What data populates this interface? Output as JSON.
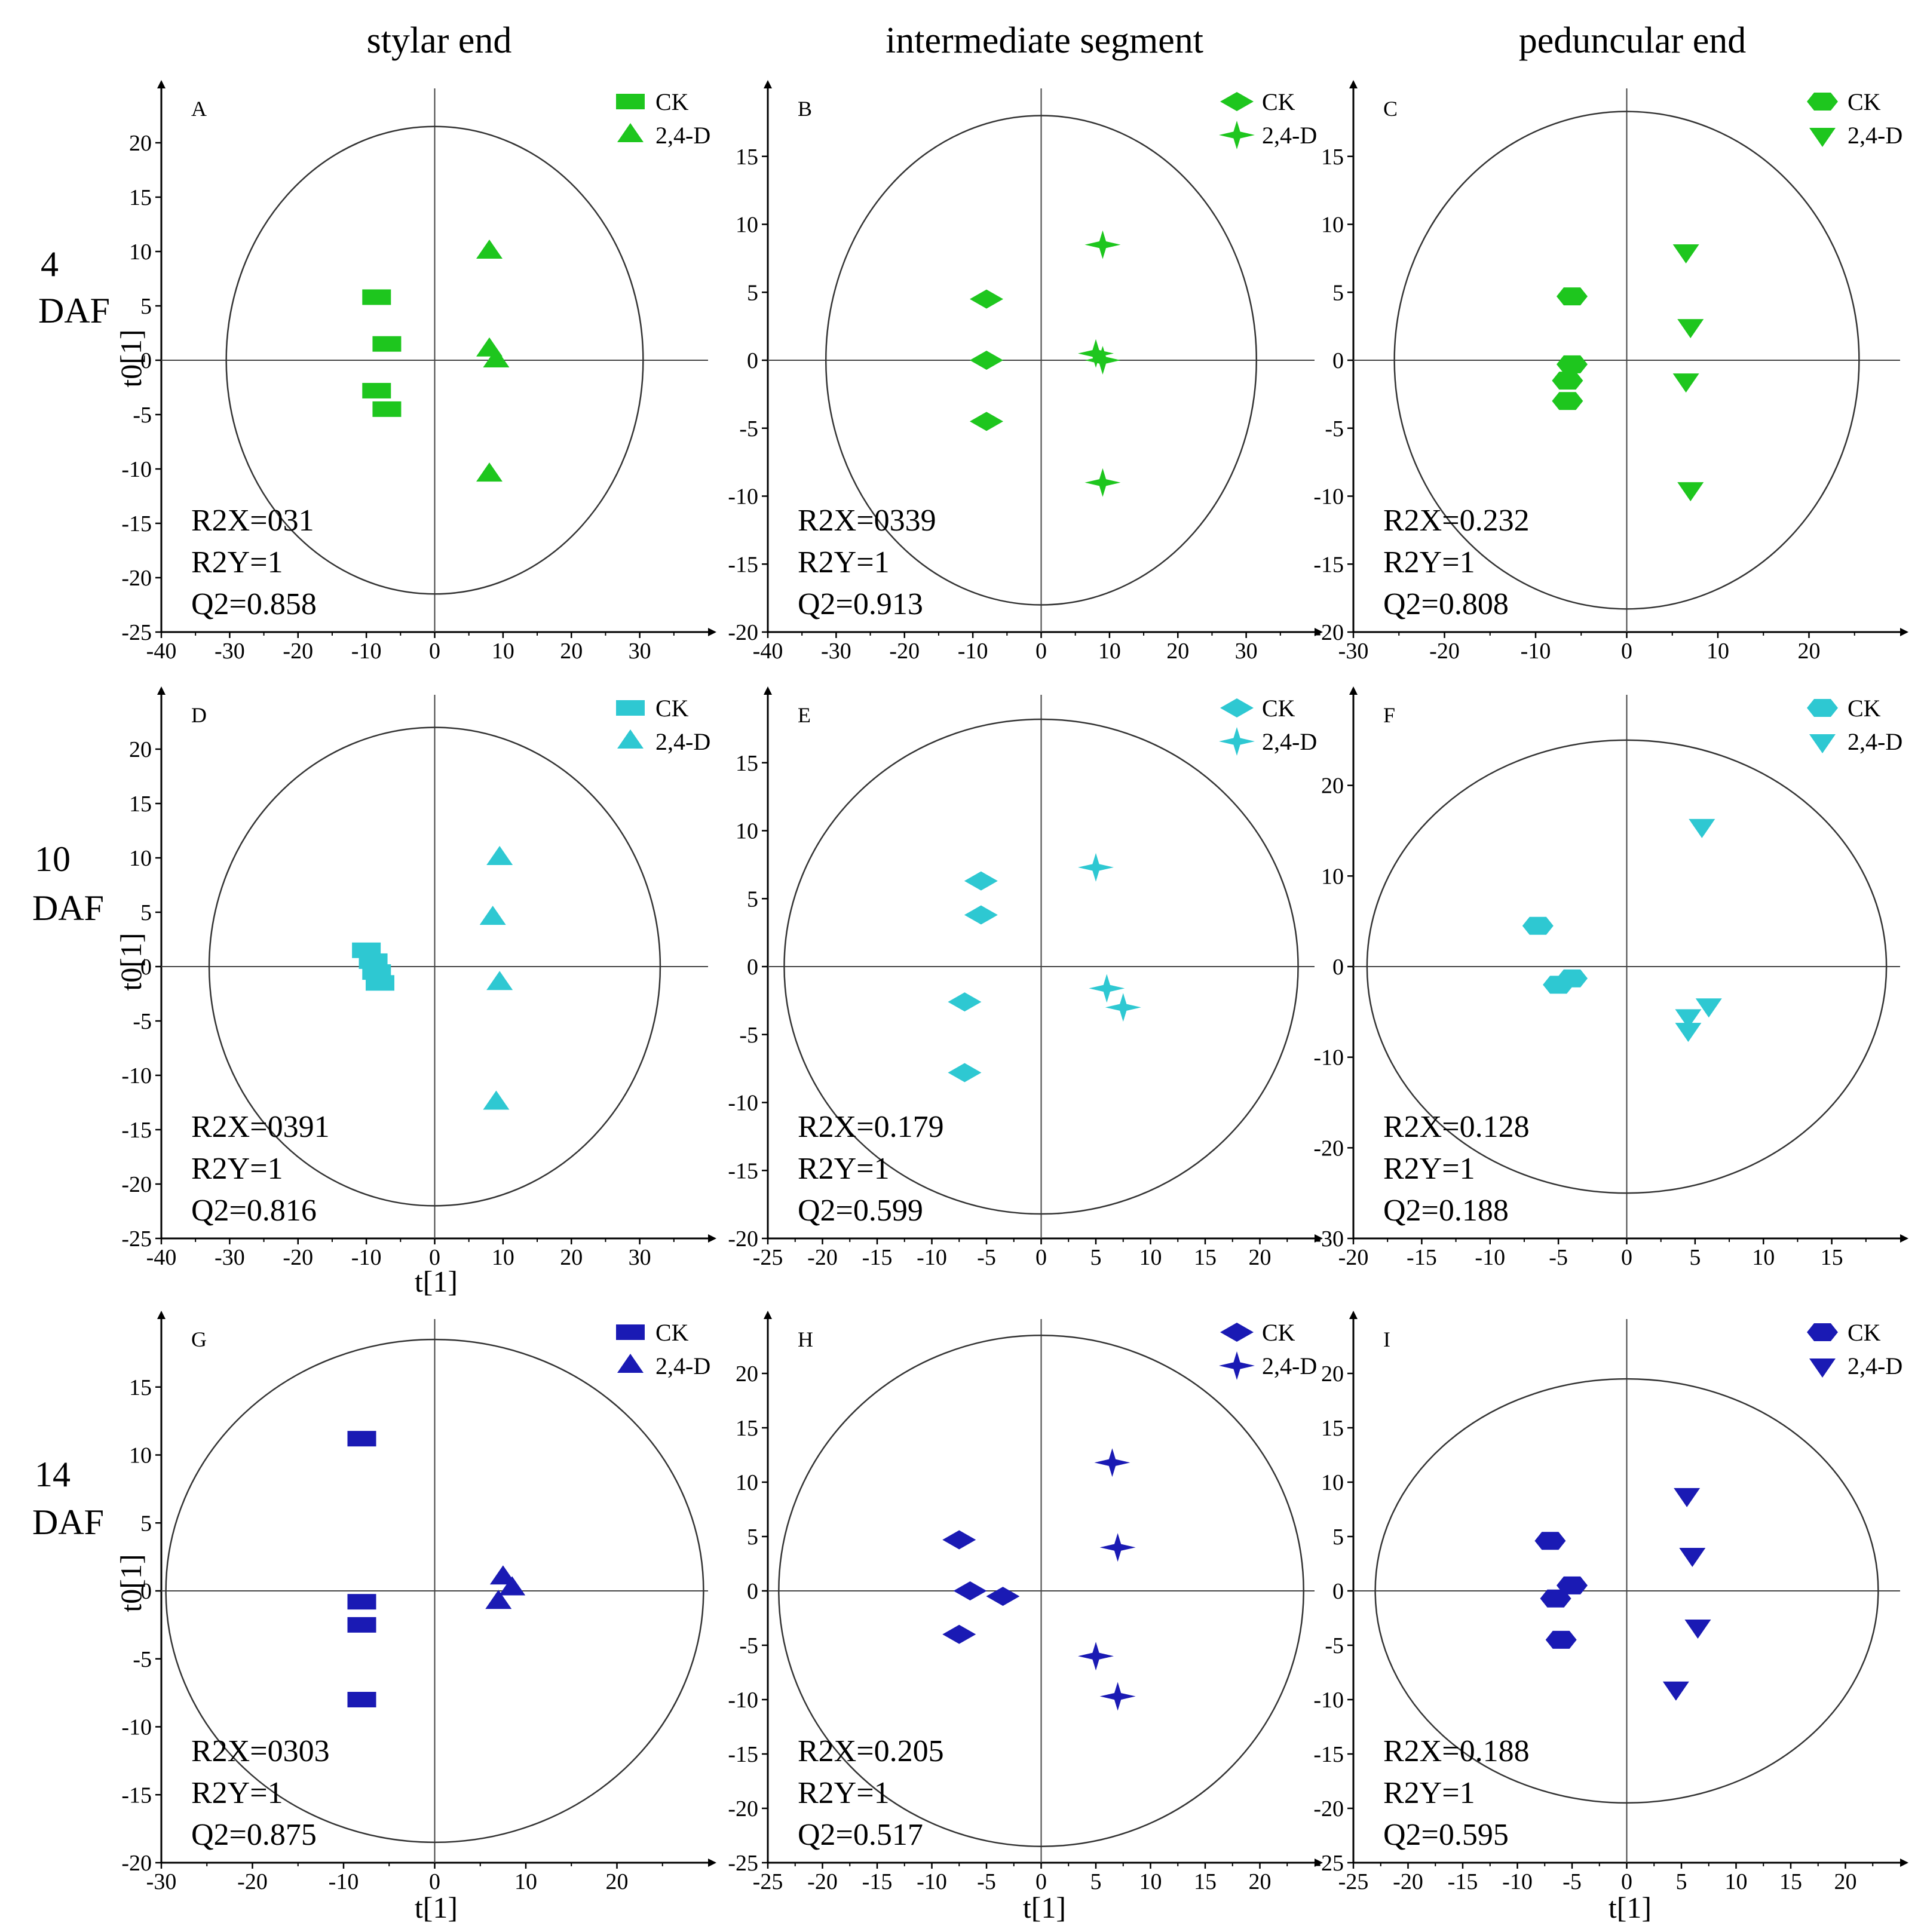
{
  "figure": {
    "column_titles": [
      "stylar end",
      "intermediate segment",
      "peduncular end"
    ],
    "row_labels": [
      {
        "num": "4",
        "unit": "DAF"
      },
      {
        "num": "10",
        "unit": "DAF"
      },
      {
        "num": "14",
        "unit": "DAF"
      }
    ],
    "x_axis_label": "t[1]",
    "y_axis_label": "t0[1]",
    "legend": {
      "control": "CK",
      "treatment": "2,4-D"
    },
    "colors": {
      "row0": "#1ec61e",
      "row1": "#2ec8d2",
      "row2": "#1a1ab4",
      "ellipse": "#333333",
      "axis": "#000000"
    }
  },
  "chart_data": [
    {
      "panel": "A",
      "type": "scatter",
      "title": "stylar end",
      "row": "4 DAF",
      "xlim": [
        -40,
        40
      ],
      "ylim": [
        -25,
        25
      ],
      "xticks": [
        -40,
        -30,
        -20,
        -10,
        0,
        10,
        20,
        30
      ],
      "yticks": [
        -25,
        -20,
        -15,
        -10,
        -5,
        0,
        5,
        10,
        15,
        20
      ],
      "ellipse": {
        "rx": 30.5,
        "ry": 21.5
      },
      "marker_ck": "rect",
      "marker_trt": "triangle-up",
      "series": [
        {
          "name": "CK",
          "points": [
            [
              -8.5,
              5.8
            ],
            [
              -7,
              1.5
            ],
            [
              -8.5,
              -2.8
            ],
            [
              -7,
              -4.5
            ]
          ]
        },
        {
          "name": "2,4-D",
          "points": [
            [
              8,
              10
            ],
            [
              8,
              1
            ],
            [
              9,
              0
            ],
            [
              8,
              -10.5
            ]
          ]
        }
      ],
      "stats": {
        "r2x": "R2X=031",
        "r2y": "R2Y=1",
        "q2": "Q2=0.858"
      }
    },
    {
      "panel": "B",
      "type": "scatter",
      "title": "intermediate segment",
      "row": "4 DAF",
      "xlim": [
        -40,
        40
      ],
      "ylim": [
        -20,
        20
      ],
      "xticks": [
        -40,
        -30,
        -20,
        -10,
        0,
        10,
        20,
        30
      ],
      "yticks": [
        -20,
        -15,
        -10,
        -5,
        0,
        5,
        10,
        15
      ],
      "ellipse": {
        "rx": 31.5,
        "ry": 18
      },
      "marker_ck": "diamond",
      "marker_trt": "star4",
      "series": [
        {
          "name": "CK",
          "points": [
            [
              -8,
              4.5
            ],
            [
              -8,
              0
            ],
            [
              -8,
              -4.5
            ]
          ]
        },
        {
          "name": "2,4-D",
          "points": [
            [
              9,
              8.5
            ],
            [
              8,
              0.5
            ],
            [
              9,
              0
            ],
            [
              9,
              -9
            ]
          ]
        }
      ],
      "stats": {
        "r2x": "R2X=0339",
        "r2y": "R2Y=1",
        "q2": "Q2=0.913"
      }
    },
    {
      "panel": "C",
      "type": "scatter",
      "title": "peduncular end",
      "row": "4 DAF",
      "xlim": [
        -30,
        30
      ],
      "ylim": [
        -20,
        20
      ],
      "xticks": [
        -30,
        -20,
        -10,
        0,
        10,
        20
      ],
      "yticks": [
        -20,
        -15,
        -10,
        -5,
        0,
        5,
        10,
        15
      ],
      "ellipse": {
        "rx": 25.5,
        "ry": 18.3
      },
      "marker_ck": "hexagon",
      "marker_trt": "triangle-down",
      "series": [
        {
          "name": "CK",
          "points": [
            [
              -6,
              4.7
            ],
            [
              -6,
              -0.3
            ],
            [
              -6.5,
              -1.5
            ],
            [
              -6.5,
              -3
            ]
          ]
        },
        {
          "name": "2,4-D",
          "points": [
            [
              6.5,
              8
            ],
            [
              7,
              2.5
            ],
            [
              6.5,
              -1.5
            ],
            [
              7,
              -9.5
            ]
          ]
        }
      ],
      "stats": {
        "r2x": "R2X=0.232",
        "r2y": "R2Y=1",
        "q2": "Q2=0.808"
      }
    },
    {
      "panel": "D",
      "type": "scatter",
      "title": "stylar end",
      "row": "10 DAF",
      "xlim": [
        -40,
        40
      ],
      "ylim": [
        -25,
        25
      ],
      "xticks": [
        -40,
        -30,
        -20,
        -10,
        0,
        10,
        20,
        30
      ],
      "yticks": [
        -25,
        -20,
        -15,
        -10,
        -5,
        0,
        5,
        10,
        15,
        20
      ],
      "ellipse": {
        "rx": 33,
        "ry": 22
      },
      "marker_ck": "rect",
      "marker_trt": "triangle-up",
      "series": [
        {
          "name": "CK",
          "points": [
            [
              -10,
              1.5
            ],
            [
              -9,
              0.5
            ],
            [
              -8.5,
              -0.5
            ],
            [
              -8,
              -1.5
            ]
          ]
        },
        {
          "name": "2,4-D",
          "points": [
            [
              9.5,
              10
            ],
            [
              8.5,
              4.5
            ],
            [
              9.5,
              -1.5
            ],
            [
              9,
              -12.5
            ]
          ]
        }
      ],
      "stats": {
        "r2x": "R2X=0391",
        "r2y": "R2Y=1",
        "q2": "Q2=0.816"
      }
    },
    {
      "panel": "E",
      "type": "scatter",
      "title": "intermediate segment",
      "row": "10 DAF",
      "xlim": [
        -25,
        25
      ],
      "ylim": [
        -20,
        20
      ],
      "xticks": [
        -25,
        -20,
        -15,
        -10,
        -5,
        0,
        5,
        10,
        15,
        20
      ],
      "yticks": [
        -20,
        -15,
        -10,
        -5,
        0,
        5,
        10,
        15
      ],
      "ellipse": {
        "rx": 23.5,
        "ry": 18.2
      },
      "marker_ck": "diamond",
      "marker_trt": "star4",
      "series": [
        {
          "name": "CK",
          "points": [
            [
              -5.5,
              6.3
            ],
            [
              -5.5,
              3.8
            ],
            [
              -7,
              -2.6
            ],
            [
              -7,
              -7.8
            ]
          ]
        },
        {
          "name": "2,4-D",
          "points": [
            [
              5,
              7.3
            ],
            [
              6,
              -1.6
            ],
            [
              7.5,
              -3
            ]
          ]
        }
      ],
      "stats": {
        "r2x": "R2X=0.179",
        "r2y": "R2Y=1",
        "q2": "Q2=0.599"
      }
    },
    {
      "panel": "F",
      "type": "scatter",
      "title": "peduncular end",
      "row": "10 DAF",
      "xlim": [
        -20,
        20
      ],
      "ylim": [
        -30,
        30
      ],
      "xticks": [
        -20,
        -15,
        -10,
        -5,
        0,
        5,
        10,
        15
      ],
      "yticks": [
        -30,
        -20,
        -10,
        0,
        10,
        20
      ],
      "ellipse": {
        "rx": 19,
        "ry": 25
      },
      "marker_ck": "hexagon",
      "marker_trt": "triangle-down",
      "series": [
        {
          "name": "CK",
          "points": [
            [
              -6.5,
              4.5
            ],
            [
              -4,
              -1.3
            ],
            [
              -5,
              -2
            ]
          ]
        },
        {
          "name": "2,4-D",
          "points": [
            [
              5.5,
              15.5
            ],
            [
              6,
              -4.3
            ],
            [
              4.5,
              -5.5
            ],
            [
              4.5,
              -7
            ]
          ]
        }
      ],
      "stats": {
        "r2x": "R2X=0.128",
        "r2y": "R2Y=1",
        "q2": "Q2=0.188"
      }
    },
    {
      "panel": "G",
      "type": "scatter",
      "title": "stylar end",
      "row": "14 DAF",
      "xlim": [
        -30,
        30
      ],
      "ylim": [
        -20,
        20
      ],
      "xticks": [
        -30,
        -20,
        -10,
        0,
        10,
        20
      ],
      "yticks": [
        -20,
        -15,
        -10,
        -5,
        0,
        5,
        10,
        15
      ],
      "ellipse": {
        "rx": 29.5,
        "ry": 18.5
      },
      "marker_ck": "rect",
      "marker_trt": "triangle-up",
      "series": [
        {
          "name": "CK",
          "points": [
            [
              -8,
              11.2
            ],
            [
              -8,
              -0.8
            ],
            [
              -8,
              -2.5
            ],
            [
              -8,
              -8
            ]
          ]
        },
        {
          "name": "2,4-D",
          "points": [
            [
              7.5,
              1
            ],
            [
              8.5,
              0.2
            ],
            [
              7,
              -0.8
            ]
          ]
        }
      ],
      "stats": {
        "r2x": "R2X=0303",
        "r2y": "R2Y=1",
        "q2": "Q2=0.875"
      }
    },
    {
      "panel": "H",
      "type": "scatter",
      "title": "intermediate segment",
      "row": "14 DAF",
      "xlim": [
        -25,
        25
      ],
      "ylim": [
        -25,
        25
      ],
      "xticks": [
        -25,
        -20,
        -15,
        -10,
        -5,
        0,
        5,
        10,
        15,
        20
      ],
      "yticks": [
        -25,
        -20,
        -15,
        -10,
        -5,
        0,
        5,
        10,
        15,
        20
      ],
      "ellipse": {
        "rx": 24,
        "ry": 23.5
      },
      "marker_ck": "diamond",
      "marker_trt": "star4",
      "series": [
        {
          "name": "CK",
          "points": [
            [
              -7.5,
              4.7
            ],
            [
              -6.5,
              0
            ],
            [
              -3.5,
              -0.5
            ],
            [
              -7.5,
              -4
            ]
          ]
        },
        {
          "name": "2,4-D",
          "points": [
            [
              6.5,
              11.8
            ],
            [
              7,
              4
            ],
            [
              5,
              -6
            ],
            [
              7,
              -9.7
            ]
          ]
        }
      ],
      "stats": {
        "r2x": "R2X=0.205",
        "r2y": "R2Y=1",
        "q2": "Q2=0.517"
      }
    },
    {
      "panel": "I",
      "type": "scatter",
      "title": "peduncular end",
      "row": "14 DAF",
      "xlim": [
        -25,
        25
      ],
      "ylim": [
        -25,
        25
      ],
      "xticks": [
        -25,
        -20,
        -15,
        -10,
        -5,
        0,
        5,
        10,
        15,
        20
      ],
      "yticks": [
        -25,
        -20,
        -15,
        -10,
        -5,
        0,
        5,
        10,
        15,
        20
      ],
      "ellipse": {
        "rx": 23,
        "ry": 19.5
      },
      "marker_ck": "hexagon",
      "marker_trt": "triangle-down",
      "series": [
        {
          "name": "CK",
          "points": [
            [
              -7,
              4.6
            ],
            [
              -5,
              0.5
            ],
            [
              -6.5,
              -0.7
            ],
            [
              -6,
              -4.5
            ]
          ]
        },
        {
          "name": "2,4-D",
          "points": [
            [
              5.5,
              8.8
            ],
            [
              6,
              3.3
            ],
            [
              6.5,
              -3.3
            ],
            [
              4.5,
              -9
            ]
          ]
        }
      ],
      "stats": {
        "r2x": "R2X=0.188",
        "r2y": "R2Y=1",
        "q2": "Q2=0.595"
      }
    }
  ]
}
